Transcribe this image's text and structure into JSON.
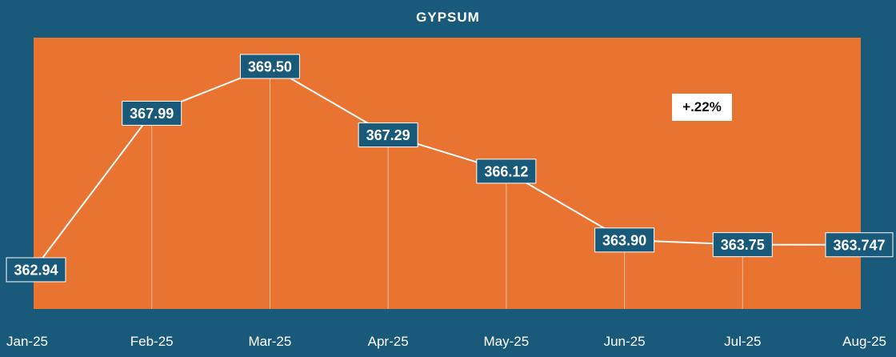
{
  "chart_data": {
    "type": "line",
    "title": "GYPSUM",
    "categories": [
      "Jan-25",
      "Feb-25",
      "Mar-25",
      "Apr-25",
      "May-25",
      "Jun-25",
      "Jul-25",
      "Aug-25"
    ],
    "values": [
      362.94,
      367.99,
      369.5,
      367.29,
      366.12,
      363.9,
      363.75,
      363.747
    ],
    "data_labels": [
      "362.94",
      "367.99",
      "369.50",
      "367.29",
      "366.12",
      "363.90",
      "363.75",
      "363.747"
    ],
    "annotation": "+.22%",
    "xlabel": "",
    "ylabel": "",
    "grid": false,
    "legend": "none",
    "colors": {
      "background": "#195a7a",
      "plot": "#e97331",
      "line": "#ffffff",
      "label_box": "#195a7a",
      "label_text": "#ffffff",
      "annotation_box": "#ffffff"
    }
  }
}
